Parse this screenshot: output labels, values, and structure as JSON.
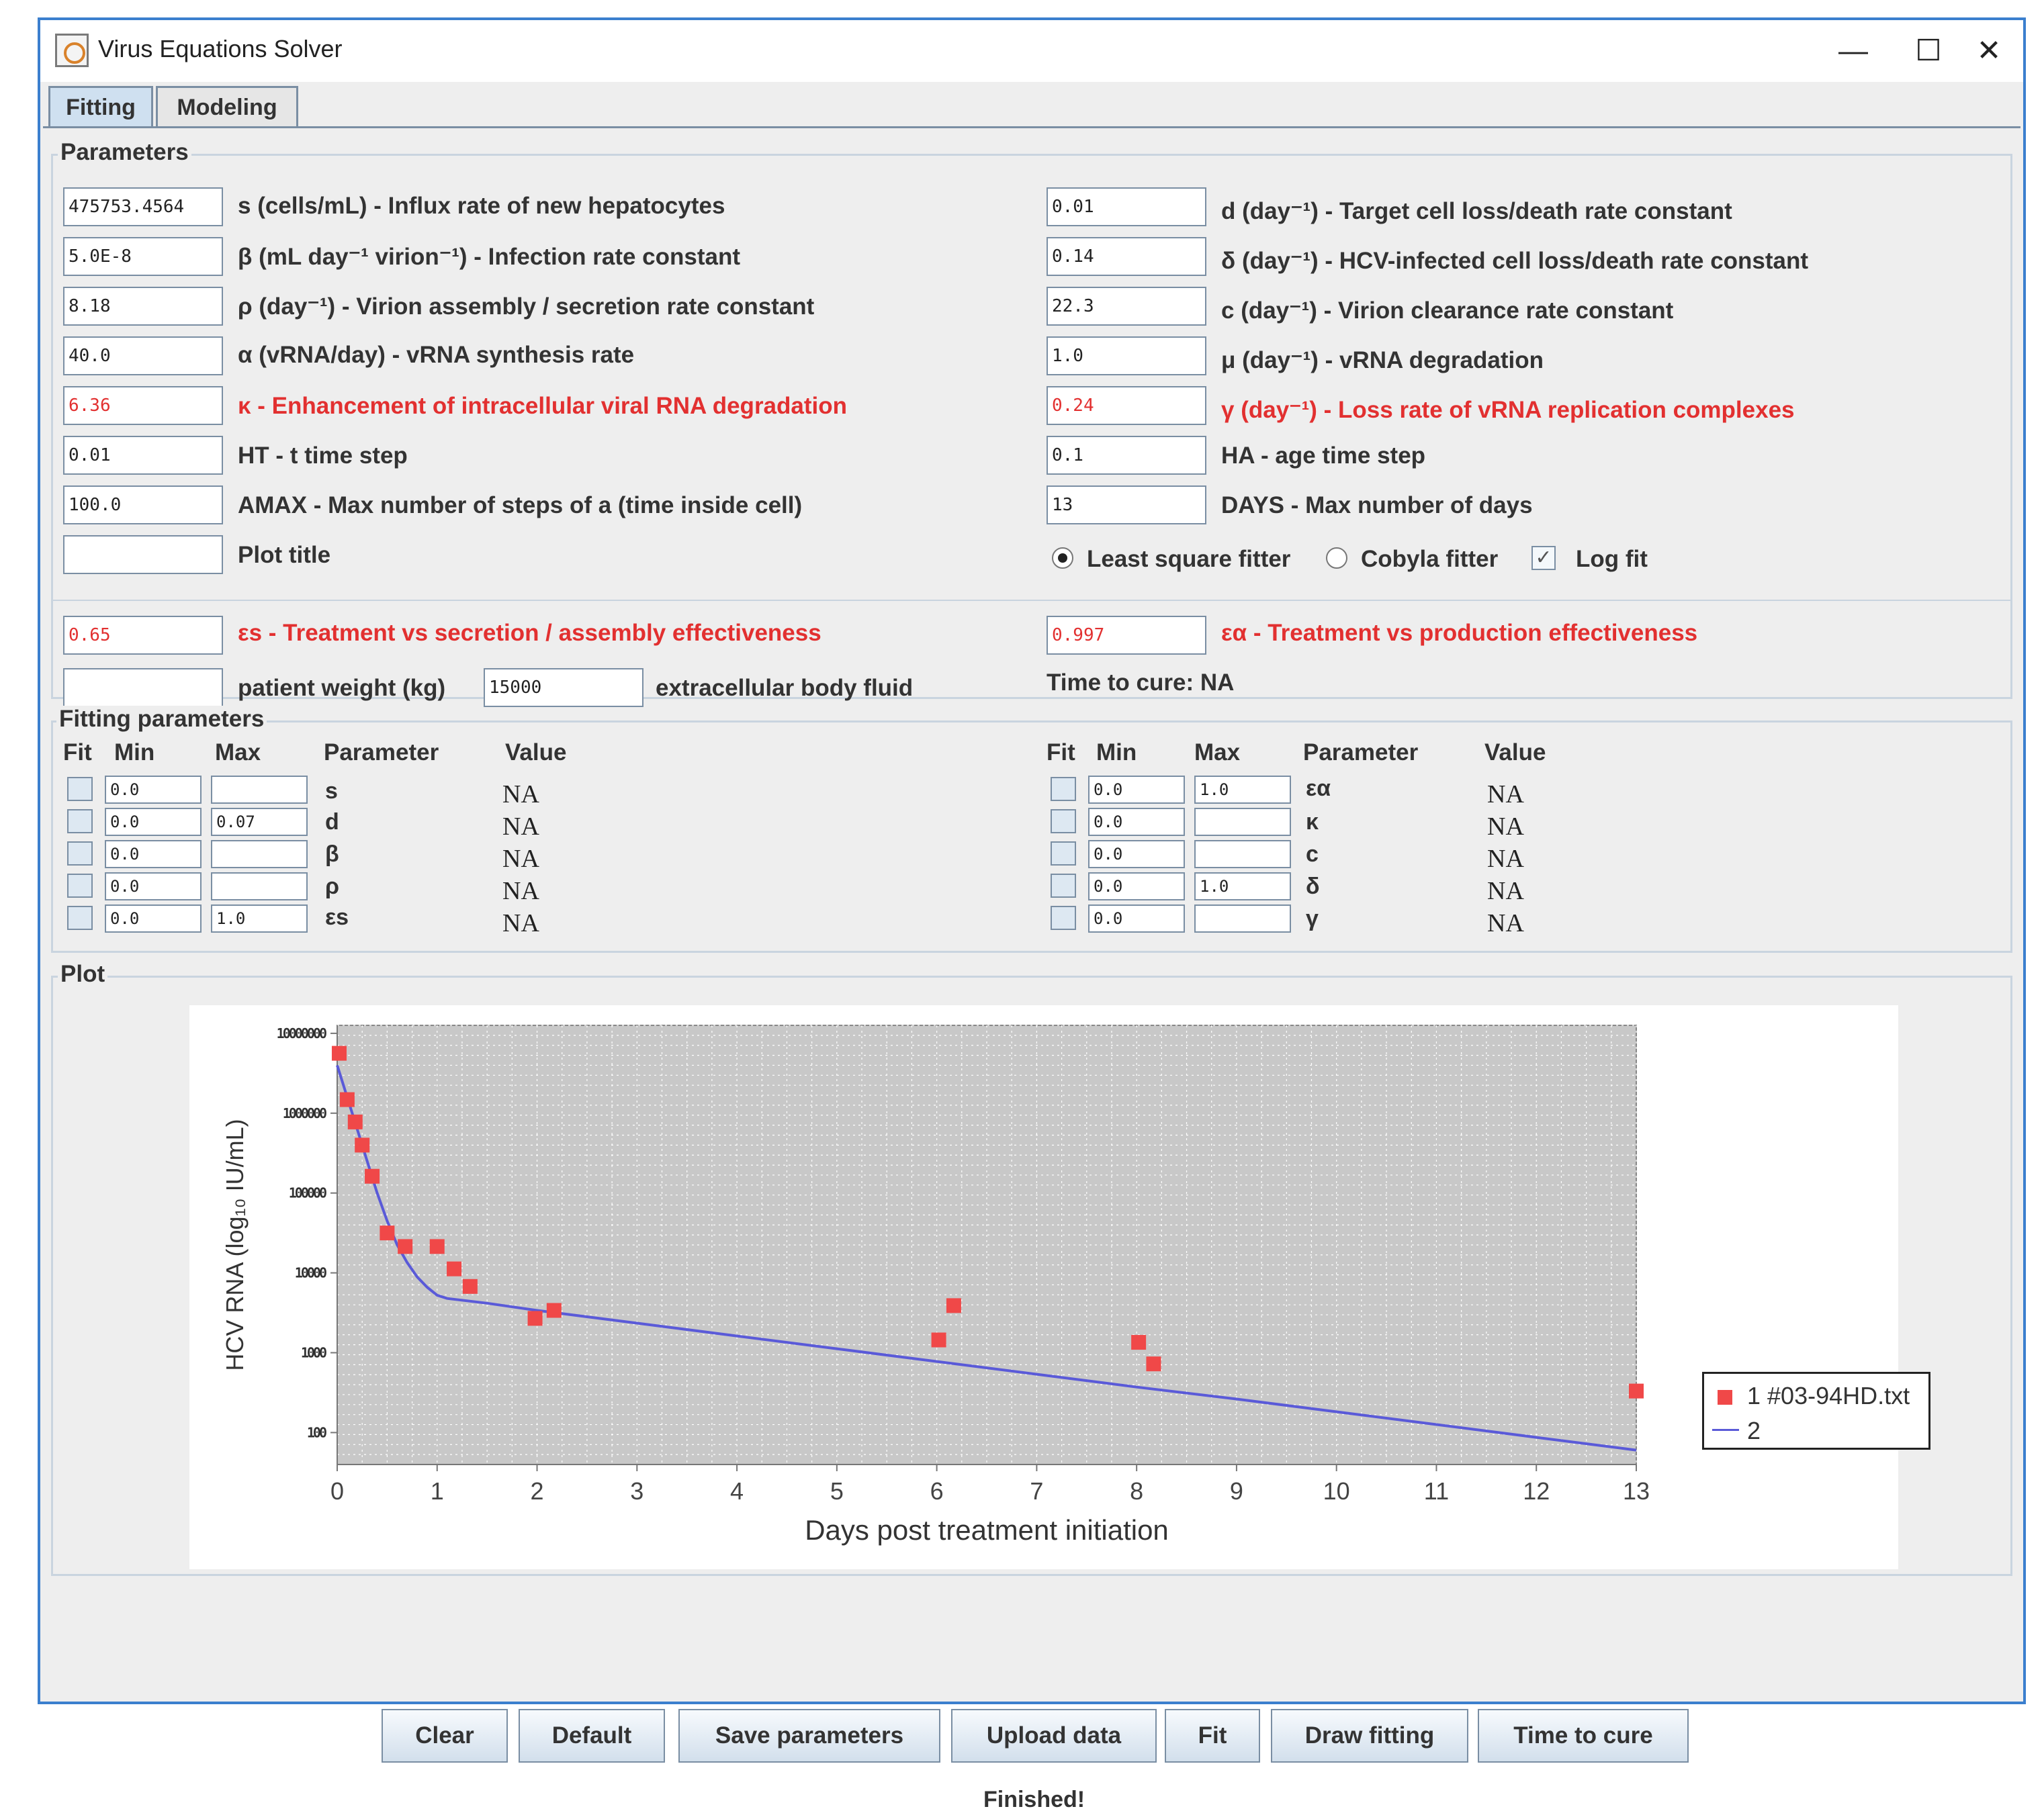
{
  "window": {
    "title": "Virus Equations Solver",
    "minimize": "—",
    "maximize": "☐",
    "close": "✕"
  },
  "tabs": [
    {
      "label": "Fitting",
      "active": true
    },
    {
      "label": "Modeling",
      "active": false
    }
  ],
  "parameters": {
    "group_title": "Parameters",
    "left": [
      {
        "value": "475753.4564",
        "label": "s (cells/mL) - Influx rate of new hepatocytes",
        "red": false
      },
      {
        "value": "5.0E-8",
        "label": "β (mL day⁻¹ virion⁻¹) - Infection rate constant",
        "red": false
      },
      {
        "value": "8.18",
        "label": "ρ (day⁻¹) - Virion assembly / secretion rate constant",
        "red": false
      },
      {
        "value": "40.0",
        "label": "α (vRNA/day) - vRNA synthesis rate",
        "red": false
      },
      {
        "value": "6.36",
        "label": "κ - Enhancement of intracellular viral RNA degradation",
        "red": true
      },
      {
        "value": "0.01",
        "label": "HT - t time step",
        "red": false
      },
      {
        "value": "100.0",
        "label": "AMAX - Max number of steps of a (time inside cell)",
        "red": false
      },
      {
        "value": "",
        "label": "Plot title",
        "red": false
      }
    ],
    "right": [
      {
        "value": "0.01",
        "label": "d (day⁻¹) - Target cell loss/death rate constant",
        "red": false
      },
      {
        "value": "0.14",
        "label": "δ (day⁻¹) - HCV-infected cell loss/death rate constant",
        "red": false
      },
      {
        "value": "22.3",
        "label": "c (day⁻¹) - Virion clearance rate constant",
        "red": false
      },
      {
        "value": "1.0",
        "label": "μ (day⁻¹) - vRNA degradation",
        "red": false
      },
      {
        "value": "0.24",
        "label": "γ (day⁻¹) - Loss rate of vRNA replication complexes",
        "red": true
      },
      {
        "value": "0.1",
        "label": "HA - age time step",
        "red": false
      },
      {
        "value": "13",
        "label": "DAYS - Max number of days",
        "red": false
      }
    ],
    "fitter": {
      "least_square": "Least square fitter",
      "cobyla": "Cobyla fitter",
      "log_fit": "Log fit"
    },
    "eps_s": {
      "value": "0.65",
      "label": "εs - Treatment vs secretion / assembly effectiveness"
    },
    "eps_a": {
      "value": "0.997",
      "label": "εα - Treatment vs production effectiveness"
    },
    "weight": {
      "value": "",
      "label": "patient weight (kg)"
    },
    "fluid": {
      "value": "15000",
      "label": "extracellular body fluid"
    },
    "time_to_cure": "Time to cure: NA"
  },
  "fitting": {
    "group_title": "Fitting parameters",
    "headers": {
      "fit": "Fit",
      "min": "Min",
      "max": "Max",
      "param": "Parameter",
      "value": "Value"
    },
    "left": [
      {
        "min": "0.0",
        "max": "",
        "param": "s",
        "value": "NA"
      },
      {
        "min": "0.0",
        "max": "0.07",
        "param": "d",
        "value": "NA"
      },
      {
        "min": "0.0",
        "max": "",
        "param": "β",
        "value": "NA"
      },
      {
        "min": "0.0",
        "max": "",
        "param": "ρ",
        "value": "NA"
      },
      {
        "min": "0.0",
        "max": "1.0",
        "param": "εs",
        "value": "NA"
      }
    ],
    "right": [
      {
        "min": "0.0",
        "max": "1.0",
        "param": "εα",
        "value": "NA"
      },
      {
        "min": "0.0",
        "max": "",
        "param": "κ",
        "value": "NA"
      },
      {
        "min": "0.0",
        "max": "",
        "param": "c",
        "value": "NA"
      },
      {
        "min": "0.0",
        "max": "1.0",
        "param": "δ",
        "value": "NA"
      },
      {
        "min": "0.0",
        "max": "",
        "param": "γ",
        "value": "NA"
      }
    ]
  },
  "plot": {
    "group_title": "Plot"
  },
  "chart_data": {
    "type": "scatter",
    "xlabel": "Days post treatment initiation",
    "ylabel": "HCV RNA (log₁₀ IU/mL)",
    "xlim": [
      0,
      13
    ],
    "ylog": true,
    "ylim_log10": [
      1.6,
      7.1
    ],
    "x_ticks": [
      0,
      1,
      2,
      3,
      4,
      5,
      6,
      7,
      8,
      9,
      10,
      11,
      12,
      13
    ],
    "y_ticks_log10": [
      2,
      3,
      4,
      5,
      6,
      7
    ],
    "y_tick_labels": [
      "100",
      "1000",
      "10000",
      "100000",
      "1000000",
      "10000000"
    ],
    "grid": true,
    "legend": "right",
    "series": [
      {
        "name": "1 #03-94HD.txt",
        "kind": "points",
        "color": "#f04848",
        "points": [
          [
            0.02,
            6.75
          ],
          [
            0.1,
            6.17
          ],
          [
            0.18,
            5.89
          ],
          [
            0.25,
            5.6
          ],
          [
            0.35,
            5.21
          ],
          [
            0.5,
            4.5
          ],
          [
            0.68,
            4.33
          ],
          [
            1.0,
            4.33
          ],
          [
            1.17,
            4.05
          ],
          [
            1.33,
            3.83
          ],
          [
            1.98,
            3.43
          ],
          [
            2.17,
            3.53
          ],
          [
            6.02,
            3.16
          ],
          [
            6.17,
            3.59
          ],
          [
            8.02,
            3.13
          ],
          [
            8.17,
            2.86
          ],
          [
            13.0,
            2.52
          ]
        ]
      },
      {
        "name": "2",
        "kind": "line",
        "color": "#5a5ad8",
        "points": [
          [
            0,
            6.6
          ],
          [
            0.1,
            6.2
          ],
          [
            0.2,
            5.8
          ],
          [
            0.3,
            5.4
          ],
          [
            0.4,
            5.0
          ],
          [
            0.5,
            4.65
          ],
          [
            0.6,
            4.35
          ],
          [
            0.7,
            4.13
          ],
          [
            0.8,
            3.95
          ],
          [
            0.9,
            3.82
          ],
          [
            1.0,
            3.72
          ],
          [
            1.1,
            3.68
          ],
          [
            1.5,
            3.62
          ],
          [
            2.0,
            3.53
          ],
          [
            3.0,
            3.37
          ],
          [
            4.0,
            3.21
          ],
          [
            5.0,
            3.05
          ],
          [
            6.0,
            2.89
          ],
          [
            7.0,
            2.73
          ],
          [
            8.0,
            2.57
          ],
          [
            9.0,
            2.42
          ],
          [
            10.0,
            2.26
          ],
          [
            11.0,
            2.1
          ],
          [
            12.0,
            1.94
          ],
          [
            13.0,
            1.78
          ]
        ]
      }
    ]
  },
  "buttons": [
    "Clear",
    "Default",
    "Save parameters",
    "Upload data",
    "Fit",
    "Draw fitting",
    "Time to cure"
  ],
  "status": "Finished!"
}
